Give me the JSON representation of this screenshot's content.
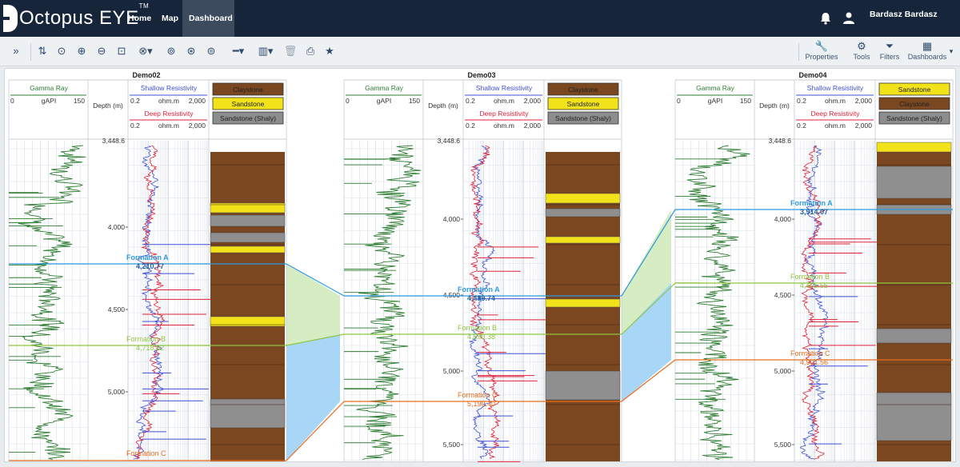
{
  "app": {
    "name": "Octopus EYE",
    "tm": "TM"
  },
  "nav": {
    "home": "Home",
    "map": "Map",
    "dashboard": "Dashboard"
  },
  "user": {
    "name": "Bardasz Bardasz"
  },
  "toolbar": {
    "icons": [
      "expand-icon",
      "sort-icon",
      "zoom-fit-icon",
      "zoom-in-icon",
      "zoom-out-icon",
      "zoom-area-icon",
      "zoom-dropdown-icon",
      "zoom-reset-icon",
      "zoom-reset-2-icon",
      "zoom-reset-3-icon",
      "line-style-icon",
      "column-layout-icon",
      "delete-icon",
      "print-icon",
      "star-icon"
    ],
    "properties": "Properties",
    "tools": "Tools",
    "filters": "Filters",
    "dashboards": "Dashboards"
  },
  "colors": {
    "gamma": "#2e7d32",
    "shallow": "#3f51d8",
    "deep": "#e0223a",
    "formationA": "#2f9ae0",
    "formationB": "#8dc63f",
    "formationC": "#e86d1f",
    "claystone": "#7a4720",
    "sandstone": "#f2e21a"
  },
  "track_headers": {
    "gamma": "Gamma Ray",
    "gamma_min": "0",
    "gamma_unit": "gAPI",
    "gamma_max": "150",
    "depth": "Depth (m)",
    "shallow": "Shallow Resistivity",
    "deep": "Deep Resistivity",
    "res_min": "0.2",
    "res_unit": "ohm.m",
    "res_max": "2,000"
  },
  "wells": [
    {
      "name": "Demo02",
      "lith_legend": [
        "Claystone",
        "Sandstone",
        "Sandstone (Shaly)"
      ],
      "depth_labels": [
        "3,448.6",
        "4,000",
        "4,500",
        "5,000"
      ],
      "formations": [
        {
          "name": "Formation A",
          "depth": "4,210.77"
        },
        {
          "name": "Formation B",
          "depth": "4,718.82"
        },
        {
          "name": "Formation C",
          "depth": ""
        }
      ]
    },
    {
      "name": "Demo03",
      "lith_legend": [
        "Claystone",
        "Sandstone",
        "Sandstone (Shaly)"
      ],
      "depth_labels": [
        "3,448.6",
        "4,000",
        "4,500",
        "5,000",
        "5,500"
      ],
      "formations": [
        {
          "name": "Formation A",
          "depth": "4,489.74"
        },
        {
          "name": "Formation B",
          "depth": "4,690.38"
        },
        {
          "name": "Formation C",
          "depth": "5,190.40"
        }
      ]
    },
    {
      "name": "Demo04",
      "lith_legend": [
        "Sandstone",
        "Claystone",
        "Sandstone (Shaly)"
      ],
      "depth_labels": [
        "3,448.6",
        "4,000",
        "4,500",
        "5,000",
        "5,500"
      ],
      "formations": [
        {
          "name": "Formation A",
          "depth": "3,914.07"
        },
        {
          "name": "Formation B",
          "depth": "4,405.55"
        },
        {
          "name": "Formation C",
          "depth": "4,901.56"
        }
      ]
    }
  ]
}
